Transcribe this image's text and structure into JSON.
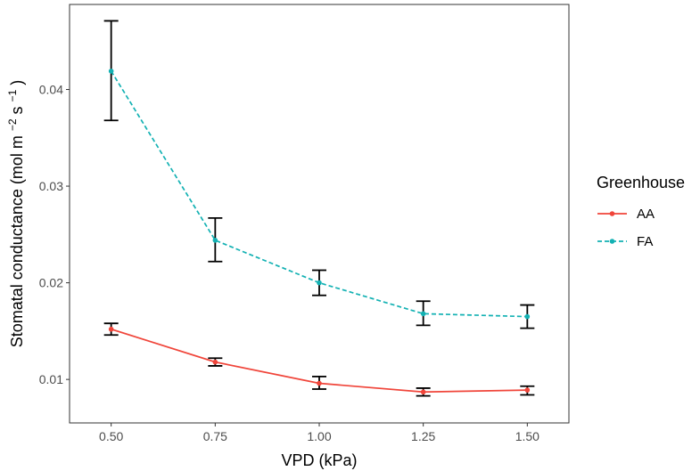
{
  "chart_data": {
    "type": "line",
    "x": [
      0.5,
      0.75,
      1.0,
      1.25,
      1.5
    ],
    "x_tick_labels": [
      "0.50",
      "0.75",
      "1.00",
      "1.25",
      "1.50"
    ],
    "y_ticks": [
      0.01,
      0.02,
      0.03,
      0.04
    ],
    "y_tick_labels": [
      "0.01",
      "0.02",
      "0.03",
      "0.04"
    ],
    "xlim": [
      0.4,
      1.6
    ],
    "ylim": [
      0.0055,
      0.0488
    ],
    "xlabel": "VPD (kPa)",
    "ylabel": {
      "prefix": "Stomatal conductance (mol m",
      "sup1": "−2",
      "mid": "s",
      "sup2": "−1",
      "suffix": ")"
    },
    "legend": {
      "title": "Greenhouse",
      "position": "right"
    },
    "series": [
      {
        "name": "AA",
        "color": "#F0453A",
        "dash": "solid",
        "values": [
          0.0152,
          0.0118,
          0.0096,
          0.0087,
          0.0089
        ],
        "err_low": [
          0.0146,
          0.0114,
          0.009,
          0.0083,
          0.0084
        ],
        "err_high": [
          0.0158,
          0.0122,
          0.0103,
          0.0091,
          0.0093
        ]
      },
      {
        "name": "FA",
        "color": "#13B1B3",
        "dash": "dashed",
        "values": [
          0.0419,
          0.0244,
          0.02,
          0.0168,
          0.0165
        ],
        "err_low": [
          0.0368,
          0.0222,
          0.0187,
          0.0156,
          0.0153
        ],
        "err_high": [
          0.0471,
          0.0267,
          0.0213,
          0.0181,
          0.0177
        ]
      }
    ]
  }
}
